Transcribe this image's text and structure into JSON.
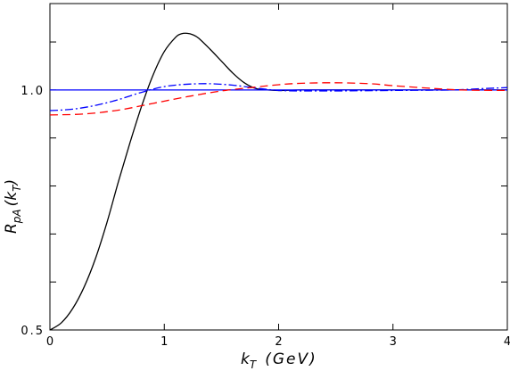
{
  "chart_data": {
    "type": "line",
    "xlabel": "k_T (GeV)",
    "xlabel_parts": {
      "base": "k",
      "sub": "T",
      "unit": "(GeV)"
    },
    "ylabel": "R_pA(k_T)",
    "ylabel_parts": {
      "base": "R",
      "sub": "pA",
      "arg": "(k",
      "argsub": "T",
      "close": ")"
    },
    "xlim": [
      0,
      4
    ],
    "ylim": [
      0.5,
      1.18
    ],
    "x_ticks": [
      0,
      1,
      2,
      3,
      4
    ],
    "x_tick_labels": [
      "0",
      "1",
      "2",
      "3",
      "4"
    ],
    "y_labeled_ticks": [
      0.5,
      1.0
    ],
    "y_tick_labels": [
      "0.5",
      "1.0"
    ],
    "y_minor_ticks": [
      0.6,
      0.7,
      0.8,
      0.9,
      1.1
    ],
    "grid": false,
    "series": [
      {
        "color": "#000000",
        "dash": "solid",
        "x": [
          0.0,
          0.1,
          0.2,
          0.3,
          0.4,
          0.5,
          0.6,
          0.7,
          0.8,
          0.9,
          1.0,
          1.1,
          1.15,
          1.2,
          1.25,
          1.3,
          1.4,
          1.5,
          1.6,
          1.7,
          1.8,
          1.9,
          2.0,
          2.2,
          2.5,
          3.0,
          3.5,
          4.0
        ],
        "y": [
          0.5,
          0.515,
          0.545,
          0.59,
          0.65,
          0.725,
          0.81,
          0.89,
          0.965,
          1.03,
          1.08,
          1.11,
          1.117,
          1.118,
          1.115,
          1.108,
          1.085,
          1.06,
          1.035,
          1.015,
          1.003,
          1.0,
          0.999,
          1.0,
          1.0,
          1.0,
          1.0,
          1.0
        ]
      },
      {
        "color": "#0000ff",
        "dash": "solid",
        "x": [
          0,
          4
        ],
        "y": [
          1.0,
          1.0
        ]
      },
      {
        "color": "#0000ff",
        "dash": "dashdot",
        "x": [
          0.0,
          0.2,
          0.4,
          0.6,
          0.8,
          1.0,
          1.2,
          1.4,
          1.6,
          1.8,
          2.0,
          2.2,
          2.5,
          3.0,
          3.5,
          3.8,
          4.0
        ],
        "y": [
          0.957,
          0.96,
          0.968,
          0.98,
          0.995,
          1.007,
          1.012,
          1.013,
          1.01,
          1.004,
          0.999,
          0.998,
          0.998,
          0.999,
          1.0,
          1.003,
          1.005
        ]
      },
      {
        "color": "#ff0000",
        "dash": "dashed",
        "x": [
          0.0,
          0.3,
          0.6,
          0.9,
          1.2,
          1.5,
          1.8,
          2.0,
          2.2,
          2.5,
          2.8,
          3.0,
          3.3,
          3.6,
          4.0
        ],
        "y": [
          0.948,
          0.95,
          0.958,
          0.972,
          0.986,
          0.998,
          1.006,
          1.011,
          1.014,
          1.015,
          1.013,
          1.009,
          1.004,
          1.0,
          0.999
        ]
      }
    ]
  }
}
